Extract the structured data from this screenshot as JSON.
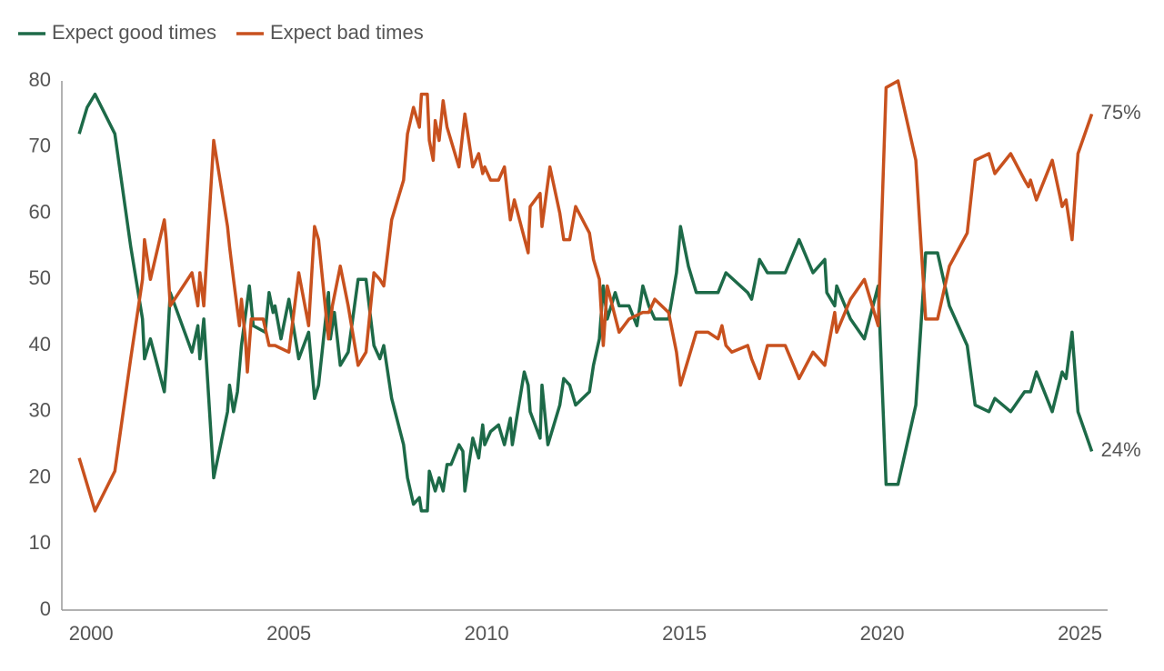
{
  "chart_data": {
    "type": "line",
    "xlim": [
      1999.26,
      2025.7
    ],
    "xticks": [
      2000,
      2005,
      2010,
      2015,
      2020,
      2025
    ],
    "ylim": [
      0,
      80
    ],
    "yticks": [
      0,
      10,
      20,
      30,
      40,
      50,
      60,
      70,
      80
    ],
    "grid": false,
    "legend": "top-left",
    "series": [
      {
        "name": "Expect good times",
        "color": "#1d6a48",
        "end_label": "24%",
        "x": [
          1999.7,
          1999.9,
          2000.1,
          2000.6,
          2001.0,
          2001.3,
          2001.35,
          2001.5,
          2001.85,
          2001.9,
          2002.0,
          2002.55,
          2002.7,
          2002.75,
          2002.85,
          2003.1,
          2003.45,
          2003.5,
          2003.6,
          2003.7,
          2003.8,
          2004.0,
          2004.1,
          2004.4,
          2004.5,
          2004.6,
          2004.65,
          2004.8,
          2005.0,
          2005.25,
          2005.5,
          2005.65,
          2005.75,
          2006.0,
          2006.05,
          2006.15,
          2006.3,
          2006.5,
          2006.75,
          2006.95,
          2007.15,
          2007.3,
          2007.4,
          2007.6,
          2007.9,
          2008.0,
          2008.15,
          2008.3,
          2008.35,
          2008.5,
          2008.55,
          2008.7,
          2008.8,
          2008.9,
          2009.0,
          2009.1,
          2009.3,
          2009.4,
          2009.45,
          2009.65,
          2009.8,
          2009.9,
          2009.95,
          2010.1,
          2010.3,
          2010.45,
          2010.6,
          2010.65,
          2010.95,
          2011.05,
          2011.1,
          2011.35,
          2011.4,
          2011.55,
          2011.85,
          2011.95,
          2012.1,
          2012.25,
          2012.6,
          2012.7,
          2012.85,
          2012.95,
          2013.05,
          2013.25,
          2013.35,
          2013.6,
          2013.8,
          2013.95,
          2014.1,
          2014.25,
          2014.6,
          2014.8,
          2014.9,
          2015.1,
          2015.3,
          2015.85,
          2016.05,
          2016.6,
          2016.7,
          2016.9,
          2017.1,
          2017.55,
          2017.9,
          2018.25,
          2018.55,
          2018.6,
          2018.8,
          2018.85,
          2019.2,
          2019.55,
          2019.9,
          2020.1,
          2020.4,
          2020.85,
          2021.1,
          2021.4,
          2021.7,
          2022.15,
          2022.35,
          2022.7,
          2022.85,
          2023.25,
          2023.6,
          2023.75,
          2023.9,
          2024.3,
          2024.55,
          2024.65,
          2024.8,
          2024.95,
          2025.3
        ],
        "values": [
          72,
          76,
          78,
          72,
          55,
          44,
          38,
          41,
          33,
          37,
          48,
          39,
          43,
          38,
          44,
          20,
          30,
          34,
          30,
          33,
          40,
          49,
          43,
          42,
          48,
          45,
          46,
          41,
          47,
          38,
          42,
          32,
          34,
          48,
          41,
          45,
          37,
          39,
          50,
          50,
          40,
          38,
          40,
          32,
          25,
          20,
          16,
          17,
          15,
          15,
          21,
          18,
          20,
          18,
          22,
          22,
          25,
          24,
          18,
          26,
          23,
          28,
          25,
          27,
          28,
          25,
          29,
          25,
          36,
          34,
          30,
          26,
          34,
          25,
          31,
          35,
          34,
          31,
          33,
          37,
          41,
          49,
          44,
          48,
          46,
          46,
          43,
          49,
          46,
          44,
          44,
          51,
          58,
          52,
          48,
          48,
          51,
          48,
          47,
          53,
          51,
          51,
          56,
          51,
          53,
          48,
          46,
          49,
          44,
          41,
          49,
          19,
          19,
          31,
          54,
          54,
          46,
          40,
          31,
          30,
          32,
          30,
          33,
          33,
          36,
          30,
          36,
          35,
          42,
          30,
          24
        ]
      },
      {
        "name": "Expect bad times",
        "color": "#c8511e",
        "end_label": "75%",
        "x": [
          1999.7,
          1999.9,
          2000.1,
          2000.6,
          2001.0,
          2001.3,
          2001.35,
          2001.5,
          2001.85,
          2001.9,
          2002.0,
          2002.55,
          2002.7,
          2002.75,
          2002.85,
          2003.1,
          2003.45,
          2003.5,
          2003.6,
          2003.75,
          2003.8,
          2003.9,
          2003.95,
          2004.05,
          2004.35,
          2004.5,
          2004.65,
          2005.0,
          2005.25,
          2005.5,
          2005.65,
          2005.75,
          2006.0,
          2006.1,
          2006.3,
          2006.5,
          2006.75,
          2006.95,
          2007.15,
          2007.3,
          2007.4,
          2007.6,
          2007.9,
          2008.0,
          2008.15,
          2008.3,
          2008.35,
          2008.5,
          2008.55,
          2008.65,
          2008.7,
          2008.8,
          2008.9,
          2009.0,
          2009.3,
          2009.45,
          2009.65,
          2009.8,
          2009.9,
          2009.95,
          2010.1,
          2010.3,
          2010.45,
          2010.6,
          2010.7,
          2011.05,
          2011.1,
          2011.35,
          2011.4,
          2011.6,
          2011.85,
          2011.95,
          2012.1,
          2012.25,
          2012.6,
          2012.7,
          2012.85,
          2012.95,
          2013.05,
          2013.35,
          2013.6,
          2013.95,
          2014.1,
          2014.25,
          2014.6,
          2014.8,
          2014.9,
          2015.1,
          2015.3,
          2015.6,
          2015.85,
          2015.95,
          2016.05,
          2016.2,
          2016.6,
          2016.7,
          2016.9,
          2017.1,
          2017.55,
          2017.9,
          2018.25,
          2018.55,
          2018.8,
          2018.85,
          2019.2,
          2019.55,
          2019.9,
          2020.1,
          2020.4,
          2020.85,
          2021.1,
          2021.4,
          2021.7,
          2022.15,
          2022.35,
          2022.7,
          2022.85,
          2023.25,
          2023.6,
          2023.7,
          2023.75,
          2023.9,
          2024.3,
          2024.55,
          2024.65,
          2024.8,
          2024.95,
          2025.3
        ],
        "values": [
          23,
          19,
          15,
          21,
          38,
          50,
          56,
          50,
          59,
          56,
          46,
          51,
          46,
          51,
          46,
          71,
          58,
          55,
          50,
          43,
          47,
          41,
          36,
          44,
          44,
          40,
          40,
          39,
          51,
          43,
          58,
          56,
          41,
          46,
          52,
          46,
          37,
          39,
          51,
          50,
          49,
          59,
          65,
          72,
          76,
          73,
          78,
          78,
          71,
          68,
          74,
          71,
          77,
          73,
          67,
          75,
          67,
          69,
          66,
          67,
          65,
          65,
          67,
          59,
          62,
          54,
          61,
          63,
          58,
          67,
          60,
          56,
          56,
          61,
          57,
          53,
          50,
          40,
          49,
          42,
          44,
          45,
          45,
          47,
          45,
          39,
          34,
          38,
          42,
          42,
          41,
          43,
          40,
          39,
          40,
          38,
          35,
          40,
          40,
          35,
          39,
          37,
          45,
          42,
          47,
          50,
          43,
          79,
          80,
          68,
          44,
          44,
          52,
          57,
          68,
          69,
          66,
          69,
          65,
          64,
          65,
          62,
          68,
          61,
          62,
          56,
          69,
          75
        ]
      }
    ]
  }
}
